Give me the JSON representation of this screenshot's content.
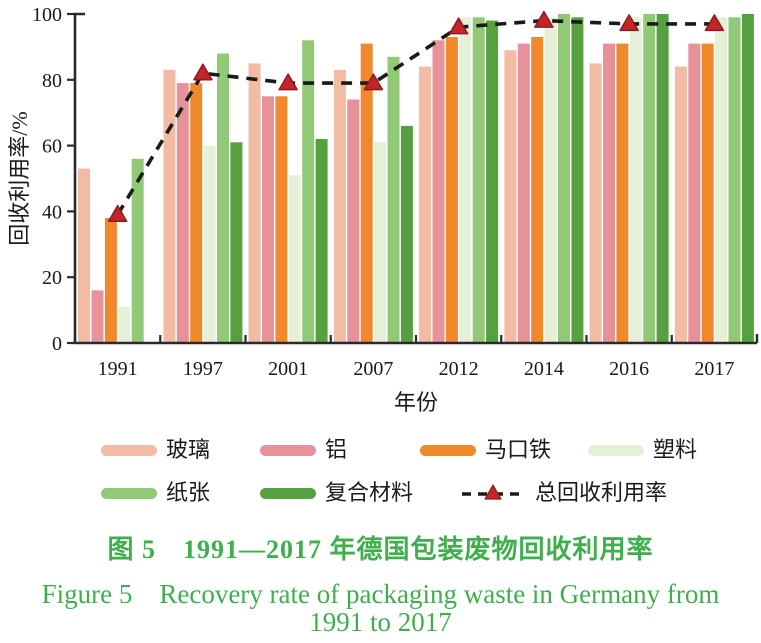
{
  "figure": {
    "caption_cn": "图 5　1991—2017 年德国包装废物回收利用率",
    "caption_en_line1": "Figure 5　Recovery rate of packaging waste in Germany from",
    "caption_en_line2": "1991 to 2017",
    "caption_color": "#3fae4c"
  },
  "legend": {
    "items": [
      {
        "label": "玻璃",
        "series": 0
      },
      {
        "label": "铝",
        "series": 1
      },
      {
        "label": "马口铁",
        "series": 2
      },
      {
        "label": "塑料",
        "series": 3
      },
      {
        "label": "纸张",
        "series": 4
      },
      {
        "label": "复合材料",
        "series": 5
      },
      {
        "label": "总回收利用率",
        "type": "dashed-line-with-triangle-marker"
      }
    ]
  },
  "chart_data": {
    "type": "bar",
    "title": "",
    "xlabel": "年份",
    "ylabel": "回收利用率/%",
    "ylim": [
      0,
      100
    ],
    "yticks": [
      0,
      20,
      40,
      60,
      80,
      100
    ],
    "grid": false,
    "legend_position": "bottom",
    "categories": [
      "1991",
      "1997",
      "2001",
      "2007",
      "2012",
      "2014",
      "2016",
      "2017"
    ],
    "series": [
      {
        "name": "玻璃",
        "color": "#f2bba3",
        "values": [
          53,
          83,
          85,
          83,
          84,
          89,
          85,
          84
        ]
      },
      {
        "name": "铝",
        "color": "#e7929a",
        "values": [
          16,
          79,
          75,
          74,
          92,
          91,
          91,
          91
        ]
      },
      {
        "name": "马口铁",
        "color": "#f0882c",
        "values": [
          38,
          79,
          75,
          91,
          93,
          93,
          91,
          91
        ]
      },
      {
        "name": "塑料",
        "color": "#e4f1d8",
        "values": [
          11,
          60,
          51,
          61,
          99,
          99,
          99,
          99
        ]
      },
      {
        "name": "纸张",
        "color": "#92c977",
        "values": [
          56,
          88,
          92,
          87,
          99,
          100,
          100,
          99
        ]
      },
      {
        "name": "复合材料",
        "color": "#56a041",
        "values": [
          null,
          61,
          62,
          66,
          98,
          99,
          100,
          100
        ]
      }
    ],
    "line_series": {
      "name": "总回收利用率",
      "type": "line",
      "values": [
        39,
        82,
        79,
        79,
        96,
        98,
        97,
        97
      ],
      "line_color": "#1a1a1a",
      "line_style": "dashed",
      "marker": "triangle-up",
      "marker_color": "#c4252b",
      "marker_edge_color": "#8e1b1f"
    },
    "axis_color": "#2a2a2a"
  }
}
